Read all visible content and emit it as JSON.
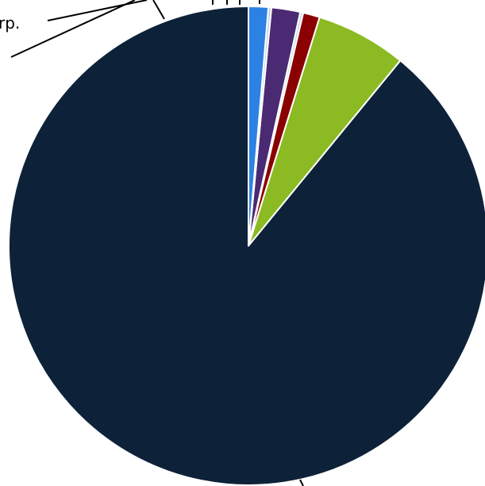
{
  "chart_data": {
    "type": "pie",
    "title": "",
    "start_angle_deg": 0,
    "direction": "counterclockwise",
    "slices": [
      {
        "label": "",
        "value": 87.3,
        "color": "#0d2239"
      },
      {
        "label": "",
        "value": 6.0,
        "color": "#8cba22"
      },
      {
        "label": "",
        "value": 1.1,
        "color": "#8b0000"
      },
      {
        "label": "",
        "value": 0.2,
        "color": "#c9d9ec"
      },
      {
        "label": "",
        "value": 1.9,
        "color": "#4a2a73"
      },
      {
        "label": "",
        "value": 0.2,
        "color": "#bcd0ea"
      },
      {
        "label": "",
        "value": 1.3,
        "color": "#2c82e2"
      }
    ],
    "visible_label_fragment": "rp.",
    "legend": "none",
    "colors": {
      "slice_border": "#ffffff",
      "leader_line": "#000000"
    }
  }
}
